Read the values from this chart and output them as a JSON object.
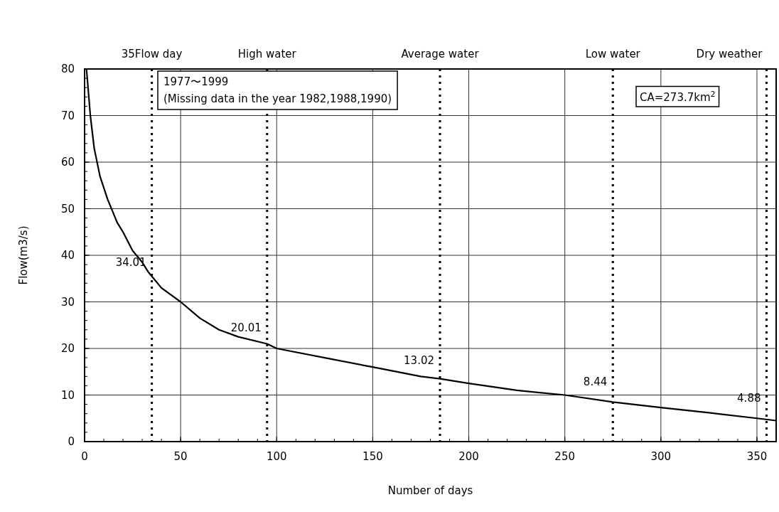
{
  "chart_data": {
    "type": "line",
    "xlabel": "Number of days",
    "ylabel": "Flow(m3/s)",
    "xlim": [
      0,
      360
    ],
    "ylim": [
      0,
      80
    ],
    "xticks": [
      0,
      50,
      100,
      150,
      200,
      250,
      300,
      350
    ],
    "yticks": [
      0,
      10,
      20,
      30,
      40,
      50,
      60,
      70,
      80
    ],
    "grid": true,
    "marker": "none",
    "line_style": "solid",
    "series": [
      {
        "color": "#000000",
        "x": [
          1,
          3,
          5,
          8,
          12,
          17,
          20,
          25,
          30,
          33,
          40,
          50,
          60,
          70,
          80,
          95,
          100,
          125,
          150,
          175,
          185,
          200,
          225,
          250,
          275,
          300,
          325,
          350,
          360
        ],
        "values": [
          80,
          70,
          63,
          57,
          52,
          47,
          45,
          41,
          38.5,
          36.5,
          33,
          30,
          26.5,
          24,
          22.5,
          21,
          20,
          18,
          16,
          14,
          13.5,
          12.5,
          11,
          10,
          8.5,
          7.3,
          6.2,
          5,
          4.5
        ]
      }
    ],
    "ref_lines": [
      {
        "axis": "x",
        "value": 35,
        "label": "35Flow day",
        "line_style": "dotted",
        "color": "#000000"
      },
      {
        "axis": "x",
        "value": 95,
        "label": "High water",
        "line_style": "dotted",
        "color": "#000000"
      },
      {
        "axis": "x",
        "value": 185,
        "label": "Average water",
        "line_style": "dotted",
        "color": "#000000"
      },
      {
        "axis": "x",
        "value": 275,
        "label": "Low water",
        "line_style": "dotted",
        "color": "#000000"
      },
      {
        "axis": "x",
        "value": 355,
        "label": "Dry weather",
        "line_style": "dotted",
        "color": "#000000"
      }
    ],
    "annotations": [
      "1977〜1999",
      "(Missing data in the year 1982,1988,1990)",
      "CA=273.7km$^{2}$",
      {
        "text": "34.01",
        "x": 35,
        "y": 34.01
      },
      {
        "text": "20.01",
        "x": 95,
        "y": 20.01
      },
      {
        "text": "13.02",
        "x": 185,
        "y": 13.02
      },
      {
        "text": "8.44",
        "x": 275,
        "y": 8.44
      },
      {
        "text": "4.88",
        "x": 355,
        "y": 4.88
      }
    ]
  }
}
